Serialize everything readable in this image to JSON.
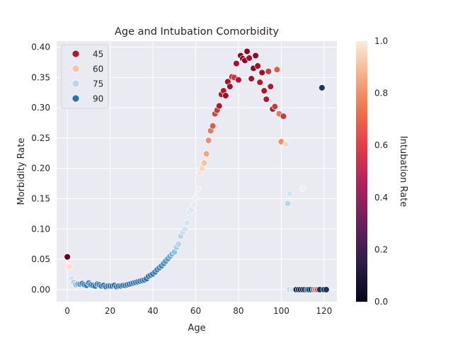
{
  "chart_data": {
    "type": "scatter",
    "title": "Age and Intubation Comorbidity",
    "xlabel": "Age",
    "ylabel": "Morbidity Rate",
    "colorbar_label": "Intubation Rate",
    "xlim": [
      -5,
      126
    ],
    "ylim": [
      -0.02,
      0.41
    ],
    "x_ticks": [
      0,
      20,
      40,
      60,
      80,
      100,
      120
    ],
    "y_ticks": [
      0.0,
      0.05,
      0.1,
      0.15,
      0.2,
      0.25,
      0.3,
      0.35,
      0.4
    ],
    "y_tick_labels": [
      "0.00",
      "0.05",
      "0.10",
      "0.15",
      "0.20",
      "0.25",
      "0.30",
      "0.35",
      "0.40"
    ],
    "colorbar_ticks": [
      0.0,
      0.2,
      0.4,
      0.6,
      0.8,
      1.0
    ],
    "colorbar_tick_labels": [
      "0.0",
      "0.2",
      "0.4",
      "0.6",
      "0.8",
      "1.0"
    ],
    "grid": true,
    "legend_placement": "top-left",
    "hue_legend": [
      {
        "label": "45",
        "color": "#b2182b"
      },
      {
        "label": "60",
        "color": "#f4c3a8"
      },
      {
        "label": "75",
        "color": "#b8d6e8"
      },
      {
        "label": "90",
        "color": "#2e6fac"
      }
    ],
    "colors": {
      "background": "#eaeaf2",
      "grid": "#ffffff",
      "point_edge": "#ffffff"
    },
    "points": [
      {
        "x": 0,
        "y": 0.054,
        "c": "#67001f"
      },
      {
        "x": 1,
        "y": 0.038,
        "c": "#fddbc7"
      },
      {
        "x": 2,
        "y": 0.018,
        "c": "#d1e5f0"
      },
      {
        "x": 3,
        "y": 0.012,
        "c": "#b8d6e8"
      },
      {
        "x": 4,
        "y": 0.008,
        "c": "#8fc2dd"
      },
      {
        "x": 5,
        "y": 0.009,
        "c": "#6aa6cf"
      },
      {
        "x": 6,
        "y": 0.009,
        "c": "#4f93c3"
      },
      {
        "x": 7,
        "y": 0.01,
        "c": "#3f86bc"
      },
      {
        "x": 8,
        "y": 0.008,
        "c": "#3a7fb8"
      },
      {
        "x": 9,
        "y": 0.007,
        "c": "#3a7fb8"
      },
      {
        "x": 10,
        "y": 0.011,
        "c": "#4a90c2"
      },
      {
        "x": 11,
        "y": 0.008,
        "c": "#3a7fb8"
      },
      {
        "x": 12,
        "y": 0.007,
        "c": "#2e6fac"
      },
      {
        "x": 13,
        "y": 0.006,
        "c": "#2e6fac"
      },
      {
        "x": 14,
        "y": 0.009,
        "c": "#3a7fb8"
      },
      {
        "x": 15,
        "y": 0.008,
        "c": "#3a7fb8"
      },
      {
        "x": 16,
        "y": 0.006,
        "c": "#2e6fac"
      },
      {
        "x": 17,
        "y": 0.007,
        "c": "#2e6fac"
      },
      {
        "x": 18,
        "y": 0.005,
        "c": "#2e6fac"
      },
      {
        "x": 19,
        "y": 0.006,
        "c": "#2e6fac"
      },
      {
        "x": 20,
        "y": 0.006,
        "c": "#2e6fac"
      },
      {
        "x": 21,
        "y": 0.006,
        "c": "#2e6fac"
      },
      {
        "x": 22,
        "y": 0.007,
        "c": "#2e6fac"
      },
      {
        "x": 23,
        "y": 0.005,
        "c": "#2e6fac"
      },
      {
        "x": 24,
        "y": 0.006,
        "c": "#2e6fac"
      },
      {
        "x": 25,
        "y": 0.006,
        "c": "#2e6fac"
      },
      {
        "x": 26,
        "y": 0.007,
        "c": "#2e6fac"
      },
      {
        "x": 27,
        "y": 0.007,
        "c": "#2e6fac"
      },
      {
        "x": 28,
        "y": 0.008,
        "c": "#2e6fac"
      },
      {
        "x": 29,
        "y": 0.009,
        "c": "#2e6fac"
      },
      {
        "x": 30,
        "y": 0.01,
        "c": "#2e6fac"
      },
      {
        "x": 31,
        "y": 0.011,
        "c": "#2e6fac"
      },
      {
        "x": 32,
        "y": 0.012,
        "c": "#2e6fac"
      },
      {
        "x": 33,
        "y": 0.013,
        "c": "#2e6fac"
      },
      {
        "x": 34,
        "y": 0.014,
        "c": "#2e6fac"
      },
      {
        "x": 35,
        "y": 0.015,
        "c": "#2e6fac"
      },
      {
        "x": 36,
        "y": 0.016,
        "c": "#2e6fac"
      },
      {
        "x": 37,
        "y": 0.018,
        "c": "#2e6fac"
      },
      {
        "x": 38,
        "y": 0.022,
        "c": "#2e6fac"
      },
      {
        "x": 39,
        "y": 0.024,
        "c": "#2e6fac"
      },
      {
        "x": 40,
        "y": 0.026,
        "c": "#2e6fac"
      },
      {
        "x": 41,
        "y": 0.029,
        "c": "#3a7fb8"
      },
      {
        "x": 42,
        "y": 0.033,
        "c": "#3a7fb8"
      },
      {
        "x": 43,
        "y": 0.036,
        "c": "#3f86bc"
      },
      {
        "x": 44,
        "y": 0.039,
        "c": "#3f86bc"
      },
      {
        "x": 45,
        "y": 0.043,
        "c": "#4a90c2"
      },
      {
        "x": 46,
        "y": 0.047,
        "c": "#4f93c3"
      },
      {
        "x": 47,
        "y": 0.051,
        "c": "#5a9bc8"
      },
      {
        "x": 48,
        "y": 0.055,
        "c": "#6aa6cf"
      },
      {
        "x": 49,
        "y": 0.059,
        "c": "#7ab2d6"
      },
      {
        "x": 50,
        "y": 0.062,
        "c": "#8fc2dd"
      },
      {
        "x": 51,
        "y": 0.07,
        "c": "#a6cde4"
      },
      {
        "x": 52,
        "y": 0.075,
        "c": "#b8d6e8"
      },
      {
        "x": 53,
        "y": 0.088,
        "c": "#b8d6e8"
      },
      {
        "x": 54,
        "y": 0.095,
        "c": "#c6dded"
      },
      {
        "x": 55,
        "y": 0.1,
        "c": "#cfe3f0"
      },
      {
        "x": 56,
        "y": 0.11,
        "c": "#d1e5f0"
      },
      {
        "x": 57,
        "y": 0.128,
        "c": "#d8e9f1"
      },
      {
        "x": 58,
        "y": 0.132,
        "c": "#d8e9f1"
      },
      {
        "x": 59,
        "y": 0.14,
        "c": "#e2edf3"
      },
      {
        "x": 60,
        "y": 0.152,
        "c": "#eaf1f5"
      },
      {
        "x": 61,
        "y": 0.166,
        "c": "#f2efea"
      },
      {
        "x": 62,
        "y": 0.193,
        "c": "#f9e3d5"
      },
      {
        "x": 63,
        "y": 0.2,
        "c": "#fbd5be"
      },
      {
        "x": 64,
        "y": 0.209,
        "c": "#f7c3a3"
      },
      {
        "x": 65,
        "y": 0.224,
        "c": "#f4a582"
      },
      {
        "x": 66,
        "y": 0.246,
        "c": "#eb8f6e"
      },
      {
        "x": 67,
        "y": 0.262,
        "c": "#e07a5f"
      },
      {
        "x": 68,
        "y": 0.27,
        "c": "#d6604d"
      },
      {
        "x": 69,
        "y": 0.29,
        "c": "#cb4a42"
      },
      {
        "x": 70,
        "y": 0.296,
        "c": "#c43c3c"
      },
      {
        "x": 71,
        "y": 0.303,
        "c": "#b2182b"
      },
      {
        "x": 72,
        "y": 0.322,
        "c": "#b2182b"
      },
      {
        "x": 73,
        "y": 0.328,
        "c": "#b2182b"
      },
      {
        "x": 74,
        "y": 0.32,
        "c": "#a50f2a"
      },
      {
        "x": 75,
        "y": 0.343,
        "c": "#a50f2a"
      },
      {
        "x": 76,
        "y": 0.335,
        "c": "#a50f2a"
      },
      {
        "x": 77,
        "y": 0.351,
        "c": "#b2182b"
      },
      {
        "x": 78,
        "y": 0.35,
        "c": "#c43c3c"
      },
      {
        "x": 79,
        "y": 0.373,
        "c": "#a50f2a"
      },
      {
        "x": 80,
        "y": 0.346,
        "c": "#b2182b"
      },
      {
        "x": 81,
        "y": 0.386,
        "c": "#8c0a28"
      },
      {
        "x": 82,
        "y": 0.381,
        "c": "#800d28"
      },
      {
        "x": 83,
        "y": 0.378,
        "c": "#8c0a28"
      },
      {
        "x": 84,
        "y": 0.393,
        "c": "#8c0a28"
      },
      {
        "x": 85,
        "y": 0.382,
        "c": "#a50f2a"
      },
      {
        "x": 86,
        "y": 0.348,
        "c": "#a50f2a"
      },
      {
        "x": 87,
        "y": 0.365,
        "c": "#8c0a28"
      },
      {
        "x": 88,
        "y": 0.386,
        "c": "#8c0a28"
      },
      {
        "x": 89,
        "y": 0.369,
        "c": "#a50f2a"
      },
      {
        "x": 90,
        "y": 0.342,
        "c": "#b2182b"
      },
      {
        "x": 91,
        "y": 0.358,
        "c": "#a50f2a"
      },
      {
        "x": 92,
        "y": 0.328,
        "c": "#b2182b"
      },
      {
        "x": 93,
        "y": 0.314,
        "c": "#b2182b"
      },
      {
        "x": 94,
        "y": 0.36,
        "c": "#c43c3c"
      },
      {
        "x": 95,
        "y": 0.335,
        "c": "#b2182b"
      },
      {
        "x": 96,
        "y": 0.298,
        "c": "#b2182b"
      },
      {
        "x": 97,
        "y": 0.302,
        "c": "#c43c3c"
      },
      {
        "x": 98,
        "y": 0.363,
        "c": "#d6604d"
      },
      {
        "x": 99,
        "y": 0.29,
        "c": "#e07a5f"
      },
      {
        "x": 100,
        "y": 0.244,
        "c": "#eb8f6e"
      },
      {
        "x": 101,
        "y": 0.286,
        "c": "#c43c3c"
      },
      {
        "x": 102,
        "y": 0.24,
        "c": "#fbd5be"
      },
      {
        "x": 103,
        "y": 0.142,
        "c": "#b8d6e8"
      },
      {
        "x": 104,
        "y": 0.158,
        "c": "#d1e5f0"
      },
      {
        "x": 104,
        "y": 0.0,
        "c": "#b8d6e8"
      },
      {
        "x": 105,
        "y": 0.0,
        "c": "#d1e5f0"
      },
      {
        "x": 107,
        "y": 0.0,
        "c": "#0b1d3a"
      },
      {
        "x": 108,
        "y": 0.0,
        "c": "#1a3560"
      },
      {
        "x": 109,
        "y": 0.0,
        "c": "#0b1d3a"
      },
      {
        "x": 110,
        "y": 0.167,
        "c": "#f2efea"
      },
      {
        "x": 110,
        "y": 0.0,
        "c": "#1a3560"
      },
      {
        "x": 111,
        "y": 0.0,
        "c": "#0b1d3a"
      },
      {
        "x": 112,
        "y": 0.0,
        "c": "#2e6fac"
      },
      {
        "x": 113,
        "y": 0.0,
        "c": "#1a3560"
      },
      {
        "x": 114,
        "y": 0.0,
        "c": "#0b1d3a"
      },
      {
        "x": 115,
        "y": 0.0,
        "c": "#4a90c2"
      },
      {
        "x": 116,
        "y": 0.0,
        "c": "#e07a5f"
      },
      {
        "x": 117,
        "y": 0.0,
        "c": "#d6604d"
      },
      {
        "x": 118,
        "y": 0.0,
        "c": "#1a3560"
      },
      {
        "x": 119,
        "y": 0.333,
        "c": "#1a3560"
      },
      {
        "x": 120,
        "y": 0.0,
        "c": "#0b1d3a"
      },
      {
        "x": 121,
        "y": 0.0,
        "c": "#1a3560"
      }
    ]
  }
}
